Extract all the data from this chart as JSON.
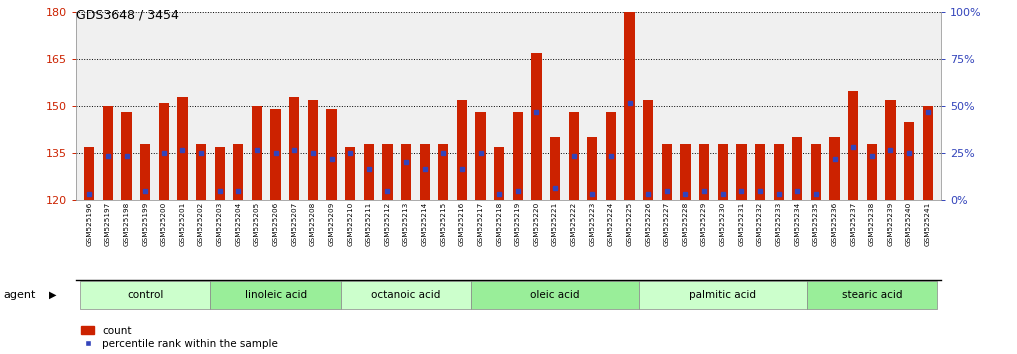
{
  "title": "GDS3648 / 3454",
  "ylim_left": [
    120,
    180
  ],
  "ylim_right": [
    0,
    100
  ],
  "yticks_left": [
    120,
    135,
    150,
    165,
    180
  ],
  "yticks_right": [
    0,
    25,
    50,
    75,
    100
  ],
  "bar_color": "#cc2200",
  "dot_color": "#3344bb",
  "plot_bg": "#f0f0f0",
  "samples": [
    "GSM525196",
    "GSM525197",
    "GSM525198",
    "GSM525199",
    "GSM525200",
    "GSM525201",
    "GSM525202",
    "GSM525203",
    "GSM525204",
    "GSM525205",
    "GSM525206",
    "GSM525207",
    "GSM525208",
    "GSM525209",
    "GSM525210",
    "GSM525211",
    "GSM525212",
    "GSM525213",
    "GSM525214",
    "GSM525215",
    "GSM525216",
    "GSM525217",
    "GSM525218",
    "GSM525219",
    "GSM525220",
    "GSM525221",
    "GSM525222",
    "GSM525223",
    "GSM525224",
    "GSM525225",
    "GSM525226",
    "GSM525227",
    "GSM525228",
    "GSM525229",
    "GSM525230",
    "GSM525231",
    "GSM525232",
    "GSM525233",
    "GSM525234",
    "GSM525235",
    "GSM525236",
    "GSM525237",
    "GSM525238",
    "GSM525239",
    "GSM525240",
    "GSM525241"
  ],
  "bar_heights": [
    137,
    150,
    148,
    138,
    151,
    153,
    138,
    137,
    138,
    150,
    149,
    153,
    152,
    149,
    137,
    138,
    138,
    138,
    138,
    138,
    152,
    148,
    137,
    148,
    167,
    140,
    148,
    140,
    148,
    180,
    152,
    138,
    138,
    138,
    138,
    138,
    138,
    138,
    140,
    138,
    140,
    155,
    138,
    152,
    145,
    150
  ],
  "dot_positions": [
    122,
    134,
    134,
    123,
    135,
    136,
    135,
    123,
    123,
    136,
    135,
    136,
    135,
    133,
    135,
    130,
    123,
    132,
    130,
    135,
    130,
    135,
    122,
    123,
    148,
    124,
    134,
    122,
    134,
    151,
    122,
    123,
    122,
    123,
    122,
    123,
    123,
    122,
    123,
    122,
    133,
    137,
    134,
    136,
    135,
    148
  ],
  "groups": [
    {
      "label": "control",
      "start": 0,
      "end": 6,
      "color": "#ccffcc"
    },
    {
      "label": "linoleic acid",
      "start": 7,
      "end": 13,
      "color": "#99ee99"
    },
    {
      "label": "octanoic acid",
      "start": 14,
      "end": 20,
      "color": "#ccffcc"
    },
    {
      "label": "oleic acid",
      "start": 21,
      "end": 29,
      "color": "#99ee99"
    },
    {
      "label": "palmitic acid",
      "start": 30,
      "end": 38,
      "color": "#ccffcc"
    },
    {
      "label": "stearic acid",
      "start": 39,
      "end": 45,
      "color": "#99ee99"
    }
  ],
  "agent_label": "agent",
  "legend_count_label": "count",
  "legend_pct_label": "percentile rank within the sample"
}
